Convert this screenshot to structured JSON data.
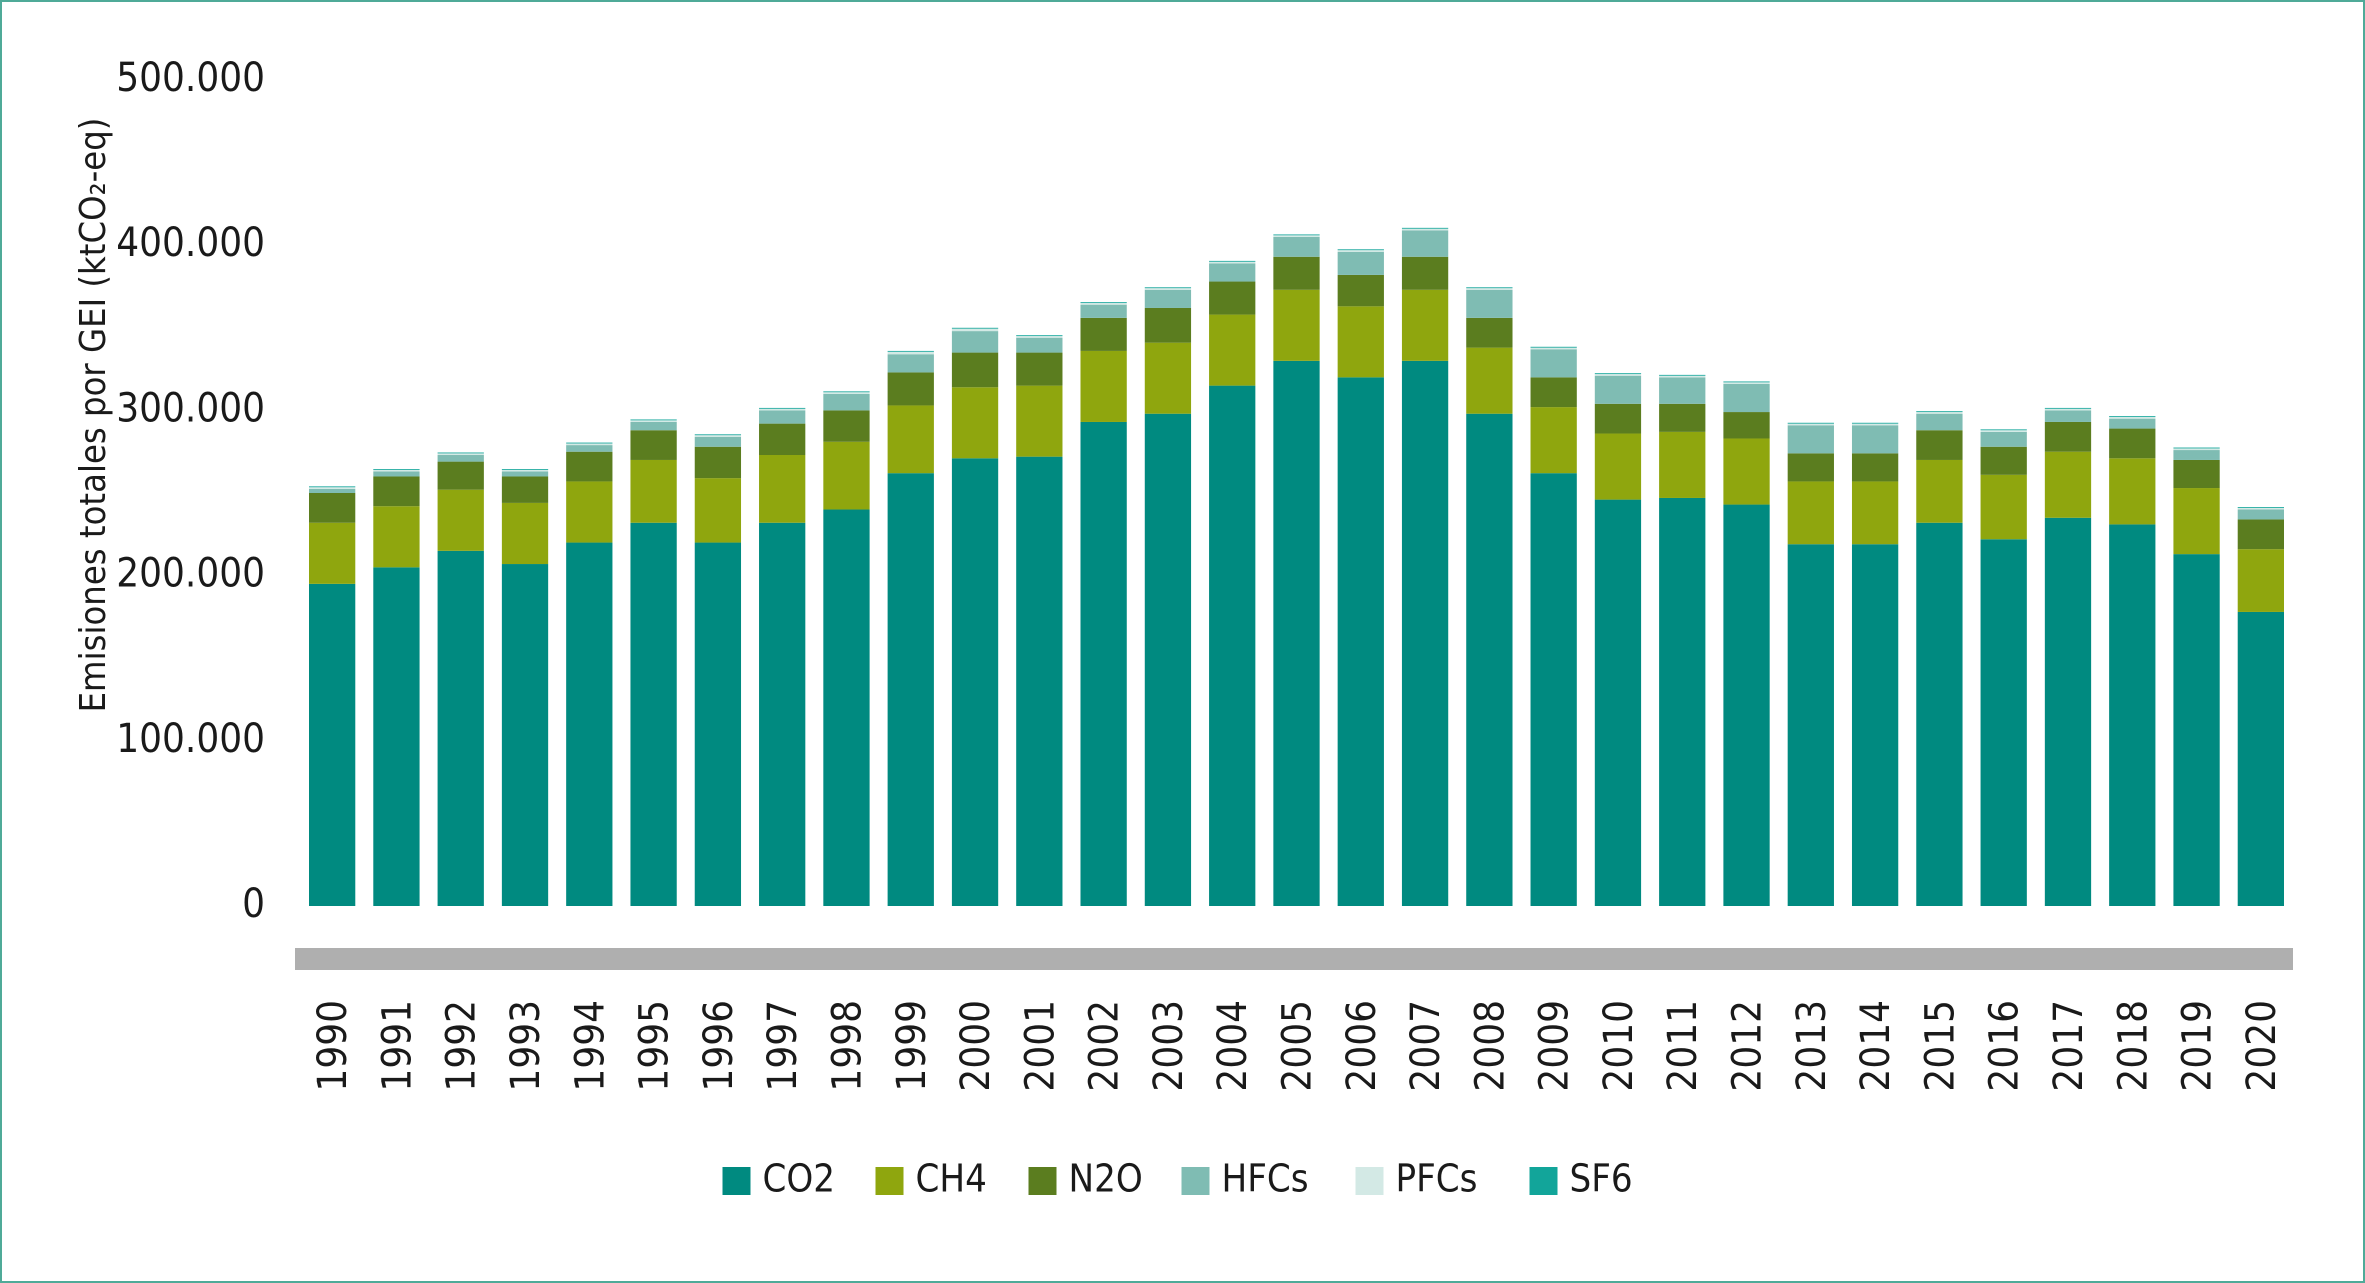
{
  "chart_data": {
    "type": "bar",
    "stacked": true,
    "ylabel": "Emisiones totales por GEI (ktCO₂-eq)",
    "ylim": [
      0,
      500000
    ],
    "yticks": [
      0,
      100000,
      200000,
      300000,
      400000,
      500000
    ],
    "ytick_labels": [
      "0",
      "100.000",
      "200.000",
      "300.000",
      "400.000",
      "500.000"
    ],
    "grid": false,
    "legend_position": "bottom",
    "categories": [
      "1990",
      "1991",
      "1992",
      "1993",
      "1994",
      "1995",
      "1996",
      "1997",
      "1998",
      "1999",
      "2000",
      "2001",
      "2002",
      "2003",
      "2004",
      "2005",
      "2006",
      "2007",
      "2008",
      "2009",
      "2010",
      "2011",
      "2012",
      "2013",
      "2014",
      "2015",
      "2016",
      "2017",
      "2018",
      "2019",
      "2020"
    ],
    "series": [
      {
        "name": "CO2",
        "color": "#008a80",
        "values": [
          195000,
          205000,
          215000,
          207000,
          220000,
          232000,
          220000,
          232000,
          240000,
          262000,
          271000,
          272000,
          293000,
          298000,
          315000,
          330000,
          320000,
          330000,
          298000,
          262000,
          246000,
          247000,
          243000,
          219000,
          219000,
          232000,
          222000,
          235000,
          231000,
          213000,
          178000
        ]
      },
      {
        "name": "CH4",
        "color": "#8fa60e",
        "values": [
          37000,
          37000,
          37000,
          37000,
          37000,
          38000,
          39000,
          41000,
          41000,
          41000,
          43000,
          43000,
          43000,
          43000,
          43000,
          43000,
          43000,
          43000,
          40000,
          40000,
          40000,
          40000,
          40000,
          38000,
          38000,
          38000,
          39000,
          40000,
          40000,
          40000,
          38000
        ]
      },
      {
        "name": "N2O",
        "color": "#5b7d1f",
        "values": [
          18000,
          18000,
          17000,
          16000,
          18000,
          18000,
          19000,
          19000,
          19000,
          20000,
          21000,
          20000,
          20000,
          21000,
          20000,
          20000,
          19000,
          20000,
          18000,
          18000,
          18000,
          17000,
          16000,
          17000,
          17000,
          18000,
          17000,
          18000,
          18000,
          17000,
          18000
        ]
      },
      {
        "name": "HFCs",
        "color": "#7fbcb3",
        "values": [
          2500,
          3000,
          4000,
          3000,
          4000,
          5000,
          6000,
          8000,
          10000,
          11000,
          13000,
          9000,
          8000,
          11000,
          11000,
          12000,
          14000,
          16000,
          17000,
          17000,
          17000,
          16000,
          17000,
          17000,
          17000,
          10000,
          9000,
          7000,
          6000,
          6000,
          6000
        ]
      },
      {
        "name": "PFCs",
        "color": "#d3e9e5",
        "values": [
          1000,
          1000,
          1000,
          1000,
          1000,
          1000,
          1000,
          1000,
          1000,
          1500,
          1500,
          1000,
          1000,
          1000,
          1000,
          1000,
          1000,
          1000,
          1000,
          1000,
          1000,
          1000,
          1000,
          1000,
          1000,
          1000,
          1000,
          1000,
          1000,
          1000,
          1000
        ]
      },
      {
        "name": "SF6",
        "color": "#12a59a",
        "values": [
          500,
          500,
          500,
          500,
          500,
          500,
          500,
          500,
          500,
          500,
          500,
          500,
          500,
          500,
          500,
          500,
          500,
          500,
          500,
          500,
          500,
          500,
          500,
          500,
          500,
          500,
          500,
          500,
          500,
          500,
          500
        ]
      }
    ]
  }
}
